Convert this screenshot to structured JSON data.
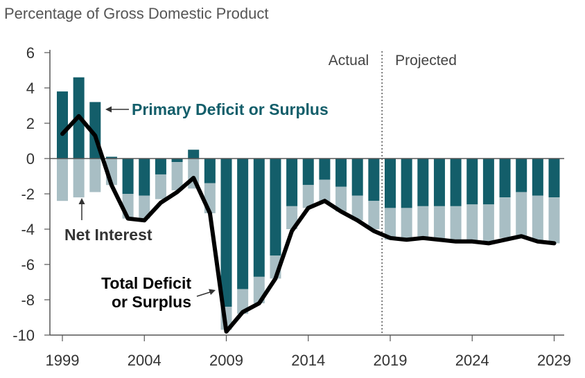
{
  "chart_data": {
    "type": "bar",
    "title": "Percentage of Gross Domestic Product",
    "x": [
      1999,
      2000,
      2001,
      2002,
      2003,
      2004,
      2005,
      2006,
      2007,
      2008,
      2009,
      2010,
      2011,
      2012,
      2013,
      2014,
      2015,
      2016,
      2017,
      2018,
      2019,
      2020,
      2021,
      2022,
      2023,
      2024,
      2025,
      2026,
      2027,
      2028,
      2029
    ],
    "x_ticks": [
      "1999",
      "2004",
      "2009",
      "2014",
      "2019",
      "2024",
      "2029"
    ],
    "y_ticks": [
      "6",
      "4",
      "2",
      "0",
      "-2",
      "-4",
      "-6",
      "-8",
      "-10"
    ],
    "ylim": [
      -10,
      6
    ],
    "series": [
      {
        "name": "Primary Deficit or Surplus",
        "type": "bar",
        "values": [
          3.8,
          4.6,
          3.2,
          0.1,
          -2.0,
          -2.1,
          -0.9,
          -0.2,
          0.5,
          -1.4,
          -8.4,
          -7.4,
          -6.7,
          -5.5,
          -2.7,
          -1.5,
          -1.2,
          -1.6,
          -2.1,
          -2.4,
          -2.8,
          -2.8,
          -2.7,
          -2.7,
          -2.7,
          -2.6,
          -2.6,
          -2.2,
          -1.9,
          -2.1,
          -2.2
        ]
      },
      {
        "name": "Net Interest",
        "type": "bar",
        "values": [
          -2.4,
          -2.2,
          -1.9,
          -1.5,
          -1.4,
          -1.3,
          -1.4,
          -1.6,
          -1.7,
          -1.7,
          -1.3,
          -1.4,
          -1.5,
          -1.3,
          -1.3,
          -1.3,
          -1.3,
          -1.4,
          -1.4,
          -1.6,
          -1.8,
          -1.8,
          -1.8,
          -1.9,
          -2.0,
          -2.1,
          -2.2,
          -2.3,
          -2.5,
          -2.6,
          -2.6
        ]
      },
      {
        "name": "Total Deficit or Surplus",
        "type": "line",
        "values": [
          1.4,
          2.4,
          1.3,
          -1.5,
          -3.4,
          -3.5,
          -2.5,
          -1.9,
          -1.1,
          -3.1,
          -9.8,
          -8.7,
          -8.2,
          -6.8,
          -4.1,
          -2.8,
          -2.4,
          -3.0,
          -3.5,
          -4.1,
          -4.5,
          -4.6,
          -4.5,
          -4.6,
          -4.7,
          -4.7,
          -4.8,
          -4.6,
          -4.4,
          -4.7,
          -4.8
        ]
      }
    ],
    "regions": [
      {
        "label": "Actual",
        "end": 2018
      },
      {
        "label": "Projected",
        "start": 2019
      }
    ],
    "annotations": {
      "primary": "Primary Deficit or Surplus",
      "net_interest": "Net Interest",
      "total_line1": "Total Deficit",
      "total_line2": "or Surplus"
    },
    "colors": {
      "primary": "#135e6a",
      "net_interest": "#a8bec4",
      "total": "#000000",
      "primary_label": "#135e6a",
      "net_label": "#333333"
    }
  }
}
